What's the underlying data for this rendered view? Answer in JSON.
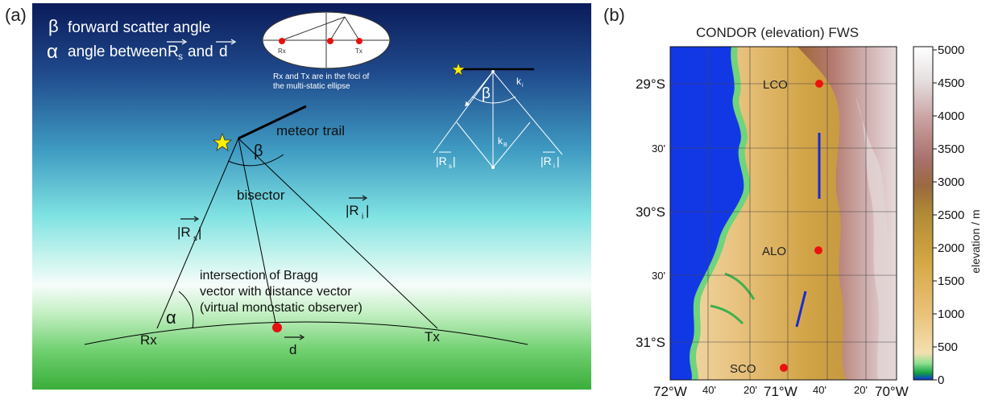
{
  "panel_a": {
    "label": "(a)",
    "legend": {
      "beta_symbol": "β",
      "beta_text": "forward scatter angle",
      "alpha_symbol": "α",
      "alpha_text_prefix": "angle between",
      "alpha_vec_rs": "R",
      "alpha_vec_rs_sub": "s",
      "alpha_and": "and",
      "alpha_vec_d": "d"
    },
    "ellipse": {
      "rx_label": "Rx",
      "tx_label": "Tx",
      "caption_line1": "Rx and Tx are in the foci of",
      "caption_line2": "the multi-static ellipse"
    },
    "inset": {
      "beta": "β",
      "ki": "k",
      "ki_sub": "i",
      "kb": "k",
      "kb_sub": "B",
      "rs": "|R",
      "rs_sub": "s",
      "ri": "|R",
      "ri_sub": "i"
    },
    "main": {
      "meteor_trail": "meteor trail",
      "beta": "β",
      "bisector": "bisector",
      "rs": "|R",
      "rs_sub": "s",
      "ri": "|R",
      "ri_sub": "i",
      "bar": "|",
      "intersection_line1": "intersection of Bragg",
      "intersection_line2": "vector with distance vector",
      "intersection_line3": "(virtual monostatic observer)",
      "alpha": "α",
      "rx": "Rx",
      "tx": "Tx",
      "d": "d"
    },
    "colors": {
      "sky_top": "#0a1c5c",
      "sky_mid": "#64d8e6",
      "sky_white": "#f4fbfa",
      "ground": "#3fb43f",
      "red_dot": "#e61010",
      "star": "#ffee00"
    }
  },
  "panel_b": {
    "label": "(b)",
    "title": "CONDOR (elevation) FWS",
    "y_ticks": [
      "29°S",
      "30'",
      "30°S",
      "30'",
      "31°S"
    ],
    "x_ticks": [
      "72°W",
      "40'",
      "20'",
      "71°W",
      "40'",
      "20'",
      "70°W"
    ],
    "stations": [
      {
        "name": "LCO"
      },
      {
        "name": "ALO"
      },
      {
        "name": "SCO"
      }
    ],
    "colorbar": {
      "label": "elevation / m",
      "ticks": [
        "5000",
        "4500",
        "4000",
        "3500",
        "3000",
        "2500",
        "2000",
        "1500",
        "1000",
        "500",
        "0"
      ]
    },
    "colors": {
      "ocean": "#1238e6",
      "station": "#ee1111",
      "beam": "#1a2ad0"
    }
  }
}
